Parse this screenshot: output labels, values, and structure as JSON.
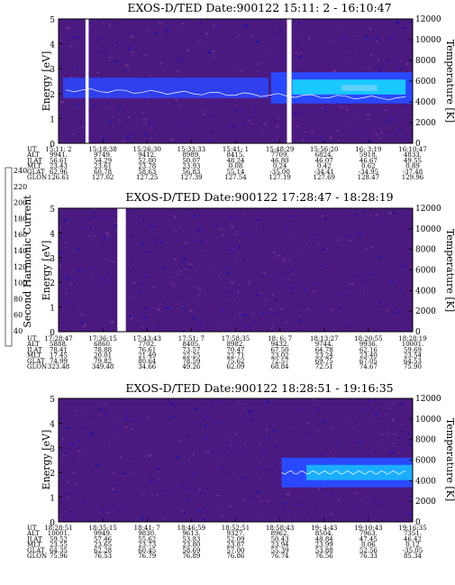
{
  "colors": {
    "background_noise": "#4a1a80",
    "noise_speckle_1": "#2c10a0",
    "noise_speckle_2": "#6a2c8a",
    "signal_blue": "#2a48ff",
    "signal_cyan": "#18c8ff",
    "signal_lightblue": "#60d0ff",
    "gap_white": "#ffffff",
    "temperature_trace": "#ffffff"
  },
  "colorbar": {
    "label": "Second Harmonic Current",
    "ticks": [
      "40",
      "60",
      "80",
      "100",
      "120",
      "140",
      "160",
      "180",
      "200",
      "220",
      "240"
    ],
    "colors": [
      "#000000",
      "#5a1a90",
      "#3010b0",
      "#2040ff",
      "#1878ff",
      "#18b0ff",
      "#00e0ff",
      "#00ffc0",
      "#40ff00",
      "#c0ff00",
      "#ffff00",
      "#ffa000",
      "#ff0000"
    ]
  },
  "chart_data": [
    {
      "type": "heatmap",
      "title": "EXOS-D/TED  Date:900122  15:11: 2 - 16:10:47",
      "ylabel": "Energy [eV]",
      "ylabel_right": "Temperature [K]",
      "ylim": [
        0,
        5
      ],
      "yticks": [
        "0",
        "1",
        "2",
        "3",
        "4",
        "5"
      ],
      "ylim_right": [
        0,
        12000
      ],
      "yticks_right": [
        "0",
        "2000",
        "4000",
        "6000",
        "8000",
        "10000",
        "12000"
      ],
      "data_gaps_fraction": [
        [
          0.076,
          0.085
        ],
        [
          0.645,
          0.658
        ]
      ],
      "signal_band_energy_eV": [
        1.6,
        3.0
      ],
      "ephemeris": {
        "labels": [
          "UT",
          "ALT",
          "ILAT",
          "MLT",
          "GLAT",
          "GLON"
        ],
        "columns": [
          [
            "15:11: 2",
            "9941.",
            "56.61",
            "23.43",
            "62.96",
            "126.61"
          ],
          [
            "15:18:38",
            "9749.",
            "54.29",
            "23.61",
            "60.78",
            "127.02"
          ],
          [
            "15:26:30",
            "9412.",
            "52.00",
            "23.78",
            "58.63",
            "127.25"
          ],
          [
            "15:33:33",
            "8989.",
            "50.07",
            "23.93",
            "56.83",
            "127.39"
          ],
          [
            "15:41: 1",
            "8415.",
            "48.24",
            "0.08",
            "55.14",
            "127.54"
          ],
          [
            "15:48:29",
            "7709.",
            "46.80",
            "0.24",
            "-35.00",
            "127.19"
          ],
          [
            "15:56:20",
            "6824.",
            "46.07",
            "0.42",
            "-34.41",
            "127.69"
          ],
          [
            "16: 3:19",
            "5918.",
            "46.67",
            "0.62",
            "-34.95",
            "128.47"
          ],
          [
            "16:10:47",
            "4833.",
            "49.55",
            "0.89",
            "-37.48",
            "129.96"
          ]
        ]
      }
    },
    {
      "type": "heatmap",
      "title": "EXOS-D/TED  Date:900122  17:28:47 - 18:28:19",
      "ylabel": "Energy [eV]",
      "ylabel_right": "Temperature [K]",
      "ylim": [
        0,
        5
      ],
      "yticks": [
        "0",
        "1",
        "2",
        "3",
        "4",
        "5"
      ],
      "ylim_right": [
        0,
        12000
      ],
      "yticks_right": [
        "0",
        "2000",
        "4000",
        "6000",
        "8000",
        "10000",
        "12000"
      ],
      "data_gaps_fraction": [
        [
          0.166,
          0.19
        ]
      ],
      "ephemeris": {
        "labels": [
          "UT",
          "ALT",
          "ILAT",
          "MLT",
          "GLAT",
          "GLON"
        ],
        "columns": [
          [
            "17:28:47",
            "5888.",
            "78.41",
            "17.45",
            "74.99",
            "323.48"
          ],
          [
            "17:36:15",
            "6860.",
            "78.88",
            "20.01",
            "79.82",
            "349.48"
          ],
          [
            "17:43:43",
            "7702.",
            "76.61",
            "21.49",
            "80.64",
            "34.66"
          ],
          [
            "17:51: 7",
            "8405.",
            "73.57",
            "22.25",
            "78.59",
            "49.26"
          ],
          [
            "17:58:35",
            "8982.",
            "70.47",
            "22.71",
            "75.62",
            "62.09"
          ],
          [
            "18: 6: 7",
            "9432.",
            "67.50",
            "23.02",
            "72.57",
            "68.84"
          ],
          [
            "18:13:27",
            "9744.",
            "64.78",
            "23.24",
            "69.75",
            "72.51"
          ],
          [
            "18:20:55",
            "9936.",
            "62.16",
            "23.40",
            "67.05",
            "74.67"
          ],
          [
            "18:28:19",
            "10001.",
            "59.69",
            "23.54",
            "64.53",
            "75.90"
          ]
        ]
      }
    },
    {
      "type": "heatmap",
      "title": "EXOS-D/TED  Date:900122  18:28:51 - 19:16:35",
      "ylabel": "Energy [eV]",
      "ylabel_right": "Temperature [K]",
      "ylim": [
        0,
        5
      ],
      "yticks": [
        "0",
        "1",
        "2",
        "3",
        "4",
        "5"
      ],
      "ylim_right": [
        0,
        12000
      ],
      "yticks_right": [
        "0",
        "2000",
        "4000",
        "6000",
        "8000",
        "10000",
        "12000"
      ],
      "signal_band_energy_eV": [
        1.4,
        2.6
      ],
      "ephemeris": {
        "labels": [
          "UT",
          "ALT",
          "ILAT",
          "MLT",
          "GLAT",
          "GLON"
        ],
        "columns": [
          [
            "18:28:51",
            "10001.",
            "59.52",
            "23.55",
            "64.35",
            "75.96"
          ],
          [
            "18:35:15",
            "9949.",
            "57.46",
            "23.65",
            "62.28",
            "76.53"
          ],
          [
            "18:41: 7",
            "9830.",
            "55.62",
            "23.73",
            "60.45",
            "76.79"
          ],
          [
            "18:46:59",
            "9613.",
            "53.83",
            "23.80",
            "58.69",
            "76.89"
          ],
          [
            "18:52:51",
            "9327.",
            "52.09",
            "23.87",
            "57.00",
            "76.86"
          ],
          [
            "18:58:43",
            "8962.",
            "50.43",
            "23.94",
            "55.39",
            "76.74"
          ],
          [
            "19: 4:43",
            "8504.",
            "48.84",
            "23.99",
            "53.88",
            "76.56"
          ],
          [
            "19:10:43",
            "7963.",
            "47.45",
            "0.06",
            "52.56",
            "76.33"
          ],
          [
            "19:16:35",
            "7351.",
            "46.42",
            "0.12",
            "-35.05",
            "85.34"
          ]
        ]
      }
    }
  ]
}
